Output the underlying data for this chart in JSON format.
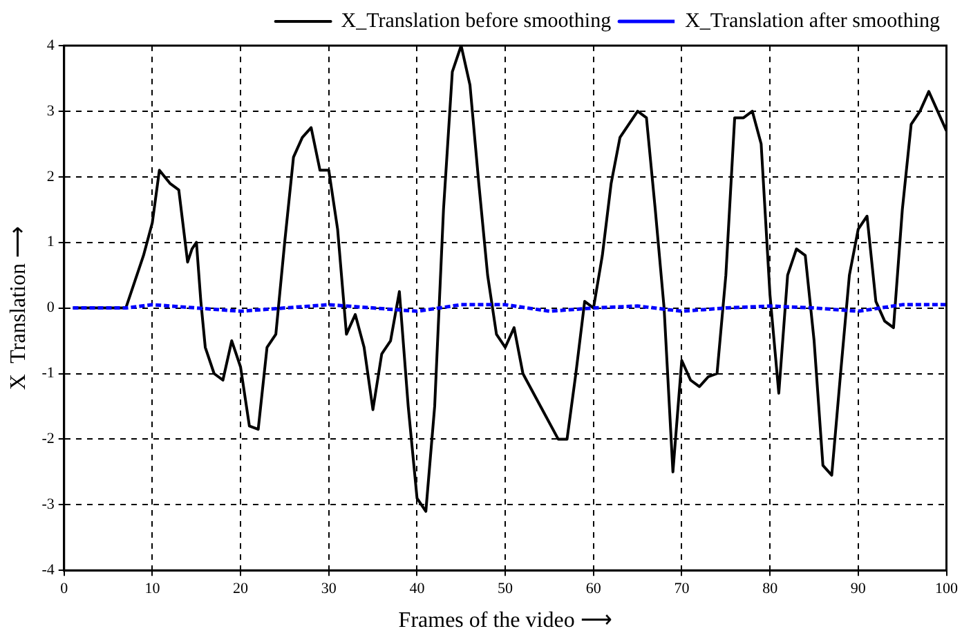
{
  "chart_data": {
    "type": "line",
    "xlabel": "Frames of the video ⟶",
    "ylabel": "X  Translation ⟶",
    "xlim": [
      0,
      100
    ],
    "xticks": [
      0,
      10,
      20,
      30,
      40,
      50,
      60,
      70,
      80,
      90,
      100
    ],
    "ylim": [
      -4,
      4
    ],
    "yticks": [
      -4,
      -3,
      -2,
      -1,
      0,
      1,
      2,
      3,
      4
    ],
    "grid": true,
    "legend": "top right",
    "marker": "none",
    "series": [
      {
        "name": "X_Translation before smoothing",
        "color": "#000000",
        "line_style": "solid",
        "x": [
          1,
          7,
          8,
          9,
          10,
          10.8,
          12,
          13,
          14,
          14.5,
          15,
          15.5,
          16,
          17,
          18,
          19,
          20,
          21,
          22,
          23,
          24,
          25,
          26,
          27,
          28,
          29,
          30,
          31,
          32,
          33,
          34,
          35,
          36,
          37,
          38,
          39,
          40,
          41,
          42,
          43,
          44,
          45,
          46,
          47,
          48,
          49,
          50,
          51,
          52,
          54,
          56,
          57,
          58,
          59,
          60,
          61,
          62,
          63,
          65,
          66,
          67,
          68,
          69,
          70,
          71,
          72,
          73,
          74,
          75,
          76,
          77,
          78,
          79,
          80,
          81,
          82,
          83,
          84,
          85,
          86,
          87,
          88,
          89,
          90,
          91,
          92,
          93,
          94,
          95,
          96,
          97,
          98,
          99,
          100
        ],
        "values": [
          0,
          0,
          0.4,
          0.8,
          1.3,
          2.1,
          1.9,
          1.8,
          0.7,
          0.9,
          1.0,
          0.1,
          -0.6,
          -1.0,
          -1.1,
          -0.5,
          -0.9,
          -1.8,
          -1.85,
          -0.6,
          -0.4,
          1.0,
          2.3,
          2.6,
          2.75,
          2.1,
          2.1,
          1.2,
          -0.4,
          -0.1,
          -0.6,
          -1.55,
          -0.7,
          -0.5,
          0.25,
          -1.5,
          -2.9,
          -3.1,
          -1.5,
          1.5,
          3.6,
          4.0,
          3.4,
          1.9,
          0.5,
          -0.4,
          -0.6,
          -0.3,
          -1.0,
          -1.5,
          -2.0,
          -2.0,
          -1.0,
          0.1,
          0.0,
          0.8,
          1.9,
          2.6,
          3.0,
          2.9,
          1.5,
          0.0,
          -2.5,
          -0.8,
          -1.1,
          -1.2,
          -1.05,
          -1.0,
          0.5,
          2.9,
          2.9,
          3.0,
          2.5,
          0.2,
          -1.3,
          0.5,
          0.9,
          0.8,
          -0.5,
          -2.4,
          -2.55,
          -1.0,
          0.5,
          1.2,
          1.4,
          0.1,
          -0.2,
          -0.3,
          1.5,
          2.8,
          3.0,
          3.3,
          3.0,
          2.7
        ]
      },
      {
        "name": "X_Translation after smoothing",
        "color": "#0000ff",
        "line_style": "dashed",
        "x": [
          1,
          7,
          10,
          15,
          20,
          25,
          30,
          35,
          40,
          45,
          50,
          55,
          60,
          65,
          70,
          75,
          80,
          85,
          90,
          95,
          100
        ],
        "values": [
          0,
          0,
          0.05,
          0,
          -0.05,
          0,
          0.05,
          0,
          -0.05,
          0.05,
          0.05,
          -0.05,
          0,
          0.03,
          -0.05,
          0,
          0.03,
          0,
          -0.05,
          0.05,
          0.05
        ]
      }
    ]
  }
}
